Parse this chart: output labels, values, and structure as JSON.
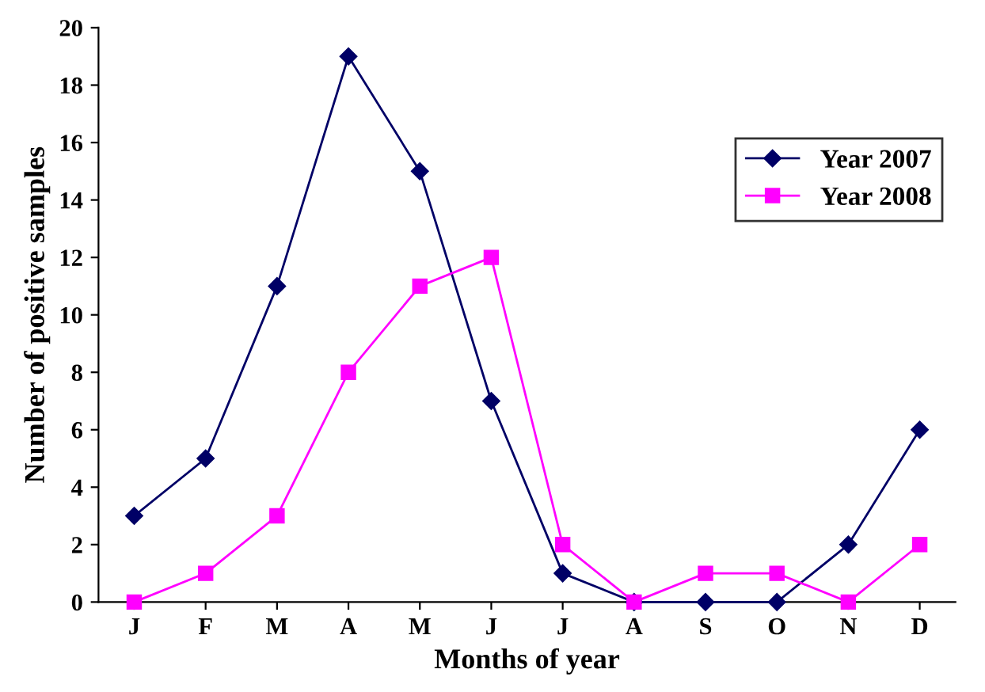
{
  "chart_data": {
    "type": "line",
    "xlabel": "Months of year",
    "ylabel": "Number of positive samples",
    "categories": [
      "J",
      "F",
      "M",
      "A",
      "M",
      "J",
      "J",
      "A",
      "S",
      "O",
      "N",
      "D"
    ],
    "series": [
      {
        "name": "Year 2007",
        "color": "#000066",
        "marker": "diamond",
        "values": [
          3,
          5,
          11,
          19,
          15,
          7,
          1,
          0,
          0,
          0,
          2,
          6
        ]
      },
      {
        "name": "Year 2008",
        "color": "#ff00ff",
        "marker": "square",
        "values": [
          0,
          1,
          3,
          8,
          11,
          12,
          2,
          0,
          1,
          1,
          0,
          2
        ]
      }
    ],
    "ylim": [
      0,
      20
    ],
    "yticks": [
      0,
      2,
      4,
      6,
      8,
      10,
      12,
      14,
      16,
      18,
      20
    ],
    "grid": false,
    "legend": "top right",
    "line_style": "solid"
  }
}
